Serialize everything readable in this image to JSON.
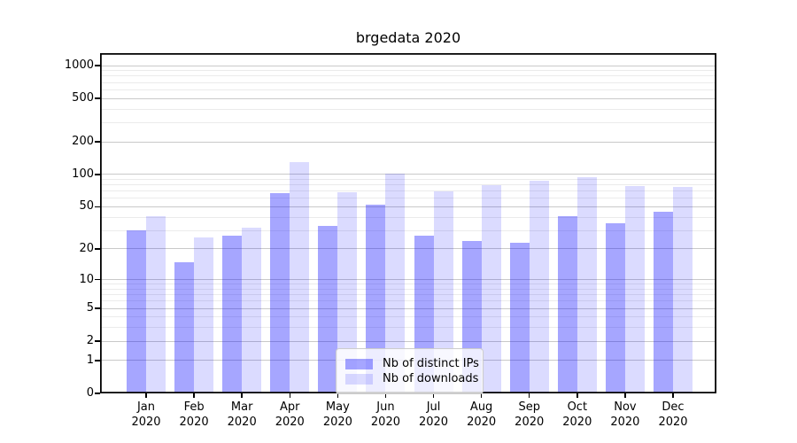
{
  "title": "brgedata 2020",
  "chart_data": {
    "type": "bar",
    "title": "brgedata 2020",
    "categories": [
      "Jan",
      "Feb",
      "Mar",
      "Apr",
      "May",
      "Jun",
      "Jul",
      "Aug",
      "Sep",
      "Oct",
      "Nov",
      "Dec"
    ],
    "category_year": "2020",
    "series": [
      {
        "name": "Nb of distinct IPs",
        "color": "#0000ff59",
        "values": [
          30,
          15,
          27,
          67,
          33,
          52,
          27,
          24,
          23,
          41,
          35,
          45
        ]
      },
      {
        "name": "Nb of downloads",
        "color": "#0000ff24",
        "values": [
          41,
          26,
          32,
          130,
          68,
          101,
          70,
          80,
          88,
          95,
          78,
          77
        ]
      }
    ],
    "xlabel": "",
    "ylabel": "",
    "yscale": "log10(1+v)",
    "ylim": [
      0,
      1300
    ],
    "yticks": [
      0,
      1,
      2,
      5,
      10,
      20,
      50,
      100,
      200,
      500,
      1000
    ],
    "minor_gridlines": [
      3,
      4,
      6,
      7,
      8,
      9,
      30,
      40,
      60,
      70,
      80,
      90,
      300,
      400,
      600,
      700,
      800,
      900
    ],
    "grid": "on",
    "legend_position": "lower center"
  },
  "colors": {
    "bar_dark_on_white": "#a6a6ff",
    "bar_light_on_white": "#dcdcff",
    "major_grid": "#c9c9c9",
    "minor_grid": "#ebebeb",
    "spine": "#000000",
    "background": "#ffffff"
  }
}
